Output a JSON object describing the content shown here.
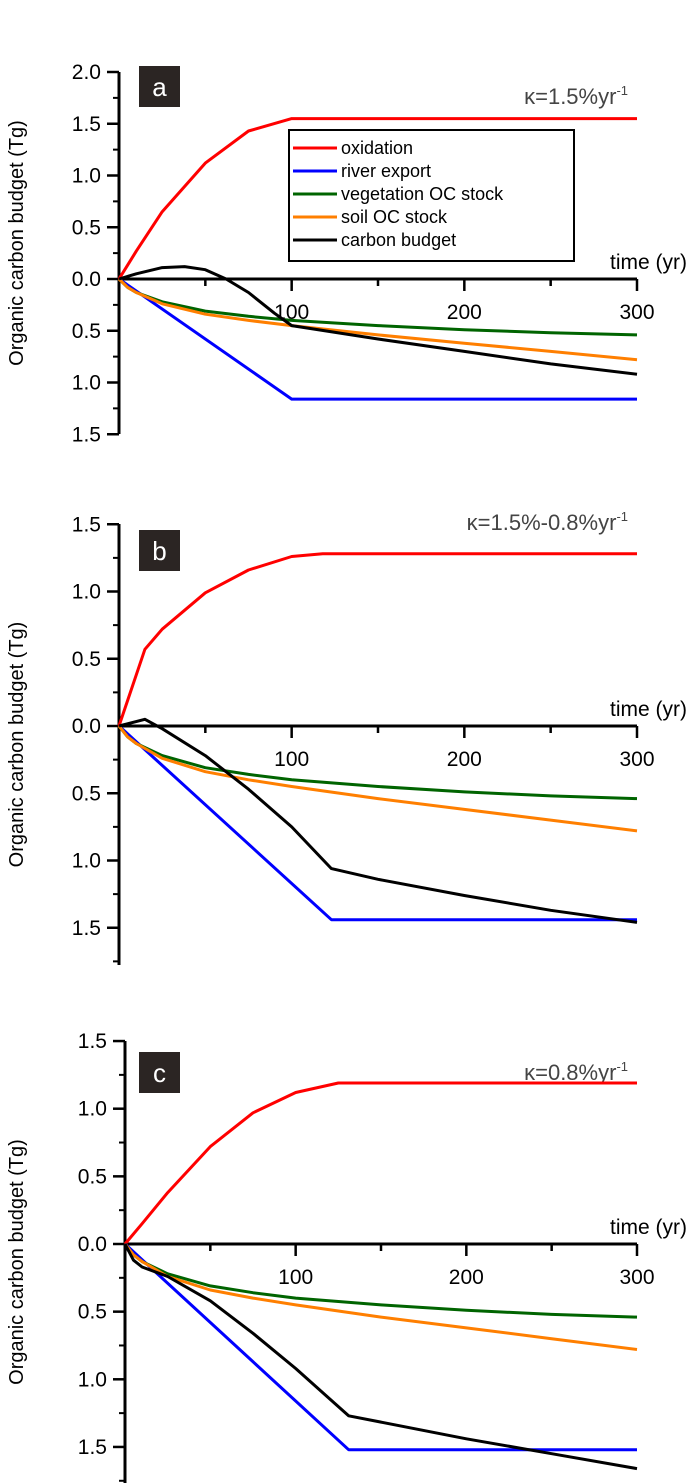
{
  "colors": {
    "oxidation": "#ff0000",
    "river": "#0000ff",
    "vegetation": "#006400",
    "soil": "#ff7f00",
    "budget": "#000000",
    "panel_box": "#2b2523"
  },
  "legend": [
    "oxidation",
    "river export",
    "vegetation OC stock",
    "soil OC stock",
    "carbon budget"
  ],
  "chart_data": [
    {
      "type": "line",
      "panel": "a",
      "kappa": "κ=1.5%yr",
      "kappa_sup": "-1",
      "xlabel": "time (yr)",
      "ylabel": "Organic carbon budget (Tg)",
      "xlim": [
        0,
        300
      ],
      "ylim": [
        -1.5,
        2.0
      ],
      "xticks": [
        "100",
        "200",
        "300"
      ],
      "yticks": [
        {
          "v": 2.0,
          "l": "2.0"
        },
        {
          "v": 1.5,
          "l": "1.5"
        },
        {
          "v": 1.0,
          "l": "1.0"
        },
        {
          "v": 0.5,
          "l": "0.5"
        },
        {
          "v": 0.0,
          "l": "0.0"
        },
        {
          "v": -0.5,
          "l": "0.5"
        },
        {
          "v": -1.0,
          "l": "1.0"
        },
        {
          "v": -1.5,
          "l": "1.5"
        }
      ],
      "series": [
        {
          "name": "oxidation",
          "key": "oxidation",
          "x": [
            0,
            10,
            25,
            50,
            75,
            100,
            300
          ],
          "y": [
            0,
            0.27,
            0.65,
            1.12,
            1.43,
            1.55,
            1.55
          ]
        },
        {
          "name": "river export",
          "key": "river",
          "x": [
            0,
            100,
            300
          ],
          "y": [
            0,
            -1.16,
            -1.16
          ]
        },
        {
          "name": "vegetation OC stock",
          "key": "vegetation",
          "x": [
            0,
            5,
            10,
            25,
            50,
            75,
            100,
            150,
            200,
            250,
            300
          ],
          "y": [
            0,
            -0.08,
            -0.13,
            -0.22,
            -0.31,
            -0.36,
            -0.4,
            -0.45,
            -0.49,
            -0.52,
            -0.54
          ]
        },
        {
          "name": "soil OC stock",
          "key": "soil",
          "x": [
            0,
            5,
            10,
            25,
            50,
            75,
            100,
            150,
            200,
            250,
            300
          ],
          "y": [
            0,
            -0.08,
            -0.13,
            -0.24,
            -0.34,
            -0.4,
            -0.45,
            -0.54,
            -0.62,
            -0.7,
            -0.78
          ]
        },
        {
          "name": "carbon budget",
          "key": "budget",
          "x": [
            0,
            10,
            25,
            38,
            50,
            62,
            75,
            90,
            100,
            150,
            200,
            250,
            300
          ],
          "y": [
            0,
            0.05,
            0.11,
            0.12,
            0.09,
            0,
            -0.13,
            -0.33,
            -0.45,
            -0.58,
            -0.7,
            -0.82,
            -0.92
          ]
        }
      ]
    },
    {
      "type": "line",
      "panel": "b",
      "kappa": "κ=1.5%-0.8%yr",
      "kappa_sup": "-1",
      "xlabel": "time (yr)",
      "ylabel": "Organic carbon budget (Tg)",
      "xlim": [
        0,
        300
      ],
      "ylim": [
        -1.75,
        1.5
      ],
      "xticks": [
        "100",
        "200",
        "300"
      ],
      "yticks": [
        {
          "v": 1.5,
          "l": "1.5"
        },
        {
          "v": 1.0,
          "l": "1.0"
        },
        {
          "v": 0.5,
          "l": "0.5"
        },
        {
          "v": 0.0,
          "l": "0.0"
        },
        {
          "v": -0.5,
          "l": "0.5"
        },
        {
          "v": -1.0,
          "l": "1.0"
        },
        {
          "v": -1.5,
          "l": "1.5"
        }
      ],
      "series": [
        {
          "name": "oxidation",
          "key": "oxidation",
          "x": [
            0,
            15,
            25,
            50,
            75,
            100,
            118,
            300
          ],
          "y": [
            0,
            0.57,
            0.72,
            0.99,
            1.16,
            1.26,
            1.28,
            1.28
          ]
        },
        {
          "name": "river export",
          "key": "river",
          "x": [
            0,
            123,
            300
          ],
          "y": [
            0,
            -1.44,
            -1.44
          ]
        },
        {
          "name": "vegetation OC stock",
          "key": "vegetation",
          "x": [
            0,
            5,
            10,
            25,
            50,
            75,
            100,
            150,
            200,
            250,
            300
          ],
          "y": [
            0,
            -0.08,
            -0.13,
            -0.22,
            -0.31,
            -0.36,
            -0.4,
            -0.45,
            -0.49,
            -0.52,
            -0.54
          ]
        },
        {
          "name": "soil OC stock",
          "key": "soil",
          "x": [
            0,
            5,
            10,
            25,
            50,
            75,
            100,
            150,
            200,
            250,
            300
          ],
          "y": [
            0,
            -0.08,
            -0.13,
            -0.24,
            -0.34,
            -0.4,
            -0.45,
            -0.54,
            -0.62,
            -0.7,
            -0.78
          ]
        },
        {
          "name": "carbon budget",
          "key": "budget",
          "x": [
            0,
            15,
            25,
            50,
            75,
            100,
            123,
            150,
            200,
            250,
            300
          ],
          "y": [
            0,
            0.05,
            -0.02,
            -0.22,
            -0.47,
            -0.75,
            -1.06,
            -1.14,
            -1.26,
            -1.37,
            -1.46
          ]
        }
      ]
    },
    {
      "type": "line",
      "panel": "c",
      "kappa": "κ=0.8%yr",
      "kappa_sup": "-1",
      "xlabel": "time (yr)",
      "ylabel": "Organic carbon budget (Tg)",
      "xlim": [
        0,
        300
      ],
      "ylim": [
        -1.75,
        1.5
      ],
      "xticks": [
        "100",
        "200",
        "300"
      ],
      "yticks": [
        {
          "v": 1.5,
          "l": "1.5"
        },
        {
          "v": 1.0,
          "l": "1.0"
        },
        {
          "v": 0.5,
          "l": "0.5"
        },
        {
          "v": 0.0,
          "l": "0.0"
        },
        {
          "v": -0.5,
          "l": "0.5"
        },
        {
          "v": -1.0,
          "l": "1.0"
        },
        {
          "v": -1.5,
          "l": "1.5"
        }
      ],
      "series": [
        {
          "name": "oxidation",
          "key": "oxidation",
          "x": [
            0,
            10,
            25,
            50,
            75,
            100,
            125,
            300
          ],
          "y": [
            0,
            0.15,
            0.38,
            0.72,
            0.97,
            1.12,
            1.19,
            1.19
          ]
        },
        {
          "name": "river export",
          "key": "river",
          "x": [
            0,
            131,
            300
          ],
          "y": [
            0,
            -1.52,
            -1.52
          ]
        },
        {
          "name": "vegetation OC stock",
          "key": "vegetation",
          "x": [
            0,
            5,
            10,
            25,
            50,
            75,
            100,
            150,
            200,
            250,
            300
          ],
          "y": [
            0,
            -0.08,
            -0.13,
            -0.22,
            -0.31,
            -0.36,
            -0.4,
            -0.45,
            -0.49,
            -0.52,
            -0.54
          ]
        },
        {
          "name": "soil OC stock",
          "key": "soil",
          "x": [
            0,
            5,
            10,
            25,
            50,
            75,
            100,
            150,
            200,
            250,
            300
          ],
          "y": [
            0,
            -0.08,
            -0.13,
            -0.24,
            -0.34,
            -0.4,
            -0.45,
            -0.54,
            -0.62,
            -0.7,
            -0.78
          ]
        },
        {
          "name": "carbon budget",
          "key": "budget",
          "x": [
            0,
            5,
            10,
            25,
            50,
            75,
            100,
            131,
            200,
            250,
            300
          ],
          "y": [
            0,
            -0.12,
            -0.17,
            -0.24,
            -0.42,
            -0.66,
            -0.92,
            -1.27,
            -1.44,
            -1.55,
            -1.66
          ]
        }
      ]
    }
  ]
}
